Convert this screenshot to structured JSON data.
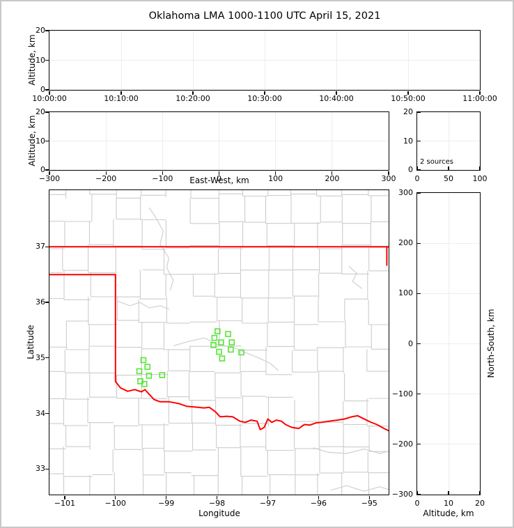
{
  "title": "Oklahoma LMA 1000-1100 UTC April 15, 2021",
  "colors": {
    "state_border": "#ff0000",
    "county_line": "#cccccc",
    "river_line": "#cfcfcf",
    "station_marker": "#55e636",
    "gridline": "#ededed",
    "axis": "#000000",
    "figure_frame": "#c8c8c8",
    "background": "#ffffff"
  },
  "chart_data": [
    {
      "id": "time_height",
      "type": "scatter",
      "ylabel": "Altitude, km",
      "xlabel": "",
      "x": {
        "lim": [
          0,
          3600
        ],
        "ticks": [
          0,
          600,
          1200,
          1800,
          2400,
          3000,
          3600
        ],
        "labels": [
          "10:00:00",
          "10:10:00",
          "10:20:00",
          "10:30:00",
          "10:40:00",
          "10:50:00",
          "11:00:00"
        ],
        "gridlines": [
          600,
          1200,
          1800,
          2400,
          3000
        ]
      },
      "y": {
        "lim": [
          0,
          20
        ],
        "ticks": [
          0,
          10,
          20
        ],
        "labels": [
          "0",
          "10",
          "20"
        ],
        "gridlines": [
          10
        ]
      },
      "ticks_in": false,
      "points": []
    },
    {
      "id": "ew_height",
      "type": "scatter",
      "ylabel": "Altitude, km",
      "xlabel": "East-West, km",
      "x": {
        "lim": [
          -300,
          300
        ],
        "ticks": [
          -300,
          -200,
          -100,
          0,
          100,
          200,
          300
        ],
        "labels": [
          "−300",
          "−200",
          "−100",
          "0",
          "100",
          "200",
          "300"
        ],
        "gridlines": [
          -200,
          -100,
          0,
          100,
          200
        ]
      },
      "y": {
        "lim": [
          0,
          20
        ],
        "ticks": [
          0,
          10,
          20
        ],
        "labels": [
          "0",
          "10",
          "20"
        ],
        "gridlines": [
          10
        ]
      },
      "ticks_in": false,
      "points": []
    },
    {
      "id": "histogram",
      "type": "scatter",
      "annotation": "2 sources",
      "ylabel": "",
      "xlabel": "",
      "x": {
        "lim": [
          0,
          100
        ],
        "ticks": [
          0,
          50,
          100
        ],
        "labels": [
          "0",
          "50",
          "100"
        ],
        "gridlines": [
          50
        ]
      },
      "y": {
        "lim": [
          0,
          20
        ],
        "ticks": [
          0,
          10,
          20
        ],
        "labels": [
          "0",
          "10",
          "20"
        ],
        "gridlines": [
          10
        ]
      },
      "ticks_in": true,
      "points": []
    },
    {
      "id": "map",
      "type": "scatter",
      "ylabel": "Latitude",
      "xlabel": "Longitude",
      "x": {
        "lim": [
          -101.3,
          -94.62
        ],
        "ticks": [
          -101,
          -100,
          -99,
          -98,
          -97,
          -96,
          -95
        ],
        "labels": [
          "−101",
          "−100",
          "−99",
          "−98",
          "−97",
          "−96",
          "−95"
        ],
        "gridlines": []
      },
      "y": {
        "lim": [
          32.54,
          38.02
        ],
        "ticks": [
          33,
          34,
          35,
          36,
          37
        ],
        "labels": [
          "33",
          "34",
          "35",
          "36",
          "37"
        ],
        "gridlines": []
      },
      "ticks_in": false,
      "stations": [
        [
          -97.99,
          35.48
        ],
        [
          -97.78,
          35.43
        ],
        [
          -98.05,
          35.36
        ],
        [
          -97.92,
          35.28
        ],
        [
          -98.07,
          35.23
        ],
        [
          -97.71,
          35.28
        ],
        [
          -97.96,
          35.11
        ],
        [
          -97.73,
          35.15
        ],
        [
          -97.52,
          35.1
        ],
        [
          -97.9,
          34.99
        ],
        [
          -99.45,
          34.96
        ],
        [
          -99.37,
          34.84
        ],
        [
          -99.53,
          34.76
        ],
        [
          -99.34,
          34.68
        ],
        [
          -99.08,
          34.69
        ],
        [
          -99.51,
          34.58
        ],
        [
          -99.43,
          34.53
        ]
      ],
      "state_border": {
        "north": [
          [
            -101.3,
            37.0
          ],
          [
            -94.62,
            37.0
          ]
        ],
        "east": [
          [
            -94.655,
            37.0
          ],
          [
            -94.655,
            36.67
          ]
        ],
        "west_and_red_river": [
          [
            -101.3,
            36.5
          ],
          [
            -100.0,
            36.5
          ],
          [
            -100.0,
            34.575
          ],
          [
            -99.9,
            34.46
          ],
          [
            -99.76,
            34.4
          ],
          [
            -99.62,
            34.43
          ],
          [
            -99.49,
            34.39
          ],
          [
            -99.42,
            34.43
          ],
          [
            -99.24,
            34.25
          ],
          [
            -99.12,
            34.21
          ],
          [
            -98.94,
            34.21
          ],
          [
            -98.76,
            34.18
          ],
          [
            -98.6,
            34.13
          ],
          [
            -98.37,
            34.11
          ],
          [
            -98.26,
            34.1
          ],
          [
            -98.15,
            34.11
          ],
          [
            -98.03,
            34.03
          ],
          [
            -97.94,
            33.94
          ],
          [
            -97.81,
            33.95
          ],
          [
            -97.69,
            33.94
          ],
          [
            -97.55,
            33.86
          ],
          [
            -97.44,
            33.84
          ],
          [
            -97.33,
            33.88
          ],
          [
            -97.21,
            33.86
          ],
          [
            -97.15,
            33.71
          ],
          [
            -97.07,
            33.75
          ],
          [
            -97.0,
            33.9
          ],
          [
            -96.92,
            33.84
          ],
          [
            -96.83,
            33.88
          ],
          [
            -96.73,
            33.86
          ],
          [
            -96.65,
            33.8
          ],
          [
            -96.53,
            33.75
          ],
          [
            -96.39,
            33.73
          ],
          [
            -96.28,
            33.8
          ],
          [
            -96.17,
            33.79
          ],
          [
            -96.05,
            33.83
          ],
          [
            -95.94,
            33.84
          ],
          [
            -95.8,
            33.86
          ],
          [
            -95.63,
            33.88
          ],
          [
            -95.49,
            33.9
          ],
          [
            -95.35,
            33.94
          ],
          [
            -95.23,
            33.96
          ],
          [
            -95.12,
            33.91
          ],
          [
            -94.99,
            33.85
          ],
          [
            -94.85,
            33.8
          ],
          [
            -94.71,
            33.73
          ],
          [
            -94.62,
            33.69
          ]
        ]
      },
      "rivers": [
        [
          [
            -99.33,
            37.7
          ],
          [
            -99.2,
            37.52
          ],
          [
            -99.06,
            37.28
          ],
          [
            -99.12,
            37.05
          ],
          [
            -98.95,
            36.8
          ],
          [
            -98.99,
            36.62
          ],
          [
            -98.86,
            36.4
          ],
          [
            -98.92,
            36.22
          ]
        ],
        [
          [
            -98.85,
            35.22
          ],
          [
            -98.55,
            35.3
          ],
          [
            -98.25,
            35.36
          ],
          [
            -97.99,
            35.24
          ],
          [
            -97.7,
            35.2
          ],
          [
            -97.45,
            35.1
          ],
          [
            -97.18,
            35.0
          ],
          [
            -96.95,
            34.9
          ],
          [
            -96.8,
            34.78
          ]
        ],
        [
          [
            -99.95,
            36.02
          ],
          [
            -99.72,
            35.94
          ],
          [
            -99.52,
            36.0
          ],
          [
            -99.33,
            35.9
          ],
          [
            -99.12,
            35.94
          ],
          [
            -98.95,
            35.88
          ]
        ],
        [
          [
            -96.1,
            33.38
          ],
          [
            -95.8,
            33.3
          ],
          [
            -95.45,
            33.28
          ],
          [
            -95.1,
            33.36
          ],
          [
            -94.8,
            33.28
          ],
          [
            -94.62,
            33.32
          ]
        ],
        [
          [
            -95.75,
            32.62
          ],
          [
            -95.45,
            32.7
          ],
          [
            -95.1,
            32.6
          ],
          [
            -94.8,
            32.68
          ],
          [
            -94.62,
            32.63
          ]
        ],
        [
          [
            -95.4,
            36.65
          ],
          [
            -95.25,
            36.52
          ],
          [
            -95.33,
            36.38
          ],
          [
            -95.15,
            36.25
          ]
        ]
      ],
      "county_grid": {
        "seed": 11,
        "lon0": -101.5,
        "dlon": 0.5,
        "cols": 15,
        "lat0": 32.45,
        "dlat": 0.455,
        "rows": 13,
        "jx": 0.1,
        "jy": 0.09,
        "skip": 0.1
      }
    },
    {
      "id": "ns_height",
      "type": "scatter",
      "ylabel": "North-South, km",
      "xlabel": "Altitude, km",
      "x": {
        "lim": [
          0,
          20
        ],
        "ticks": [
          0,
          10,
          20
        ],
        "labels": [
          "0",
          "10",
          "20"
        ],
        "gridlines": [
          10
        ]
      },
      "y": {
        "lim": [
          -300,
          300
        ],
        "ticks": [
          -300,
          -200,
          -100,
          0,
          100,
          200,
          300
        ],
        "labels": [
          "−300",
          "−200",
          "−100",
          "0",
          "100",
          "200",
          "300"
        ],
        "gridlines": [
          -200,
          -100,
          0,
          100,
          200
        ]
      },
      "ticks_in": true,
      "points": []
    }
  ]
}
